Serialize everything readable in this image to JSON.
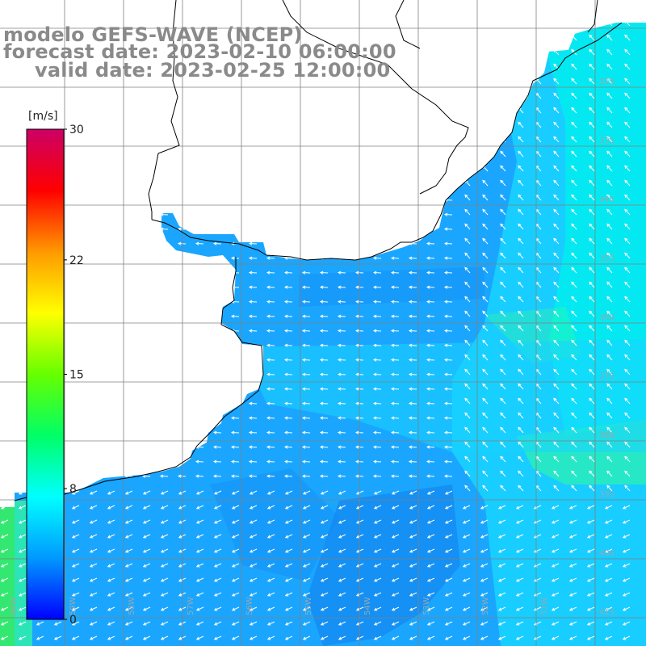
{
  "title": {
    "line1": "modelo GEFS-WAVE (NCEP)",
    "line2": "forecast date: 2023-02-10 06:00:00",
    "line3": "valid date: 2023-02-25 12:00:00"
  },
  "colorbar": {
    "unit": "[m/s]",
    "ticks": [
      "30",
      "22",
      "15",
      "8",
      "0"
    ],
    "tick_values": [
      30,
      22,
      15,
      8,
      0
    ],
    "min": 0,
    "max": 30,
    "colors": [
      "#0000ff",
      "#0099ff",
      "#00ffff",
      "#00ff66",
      "#66ff00",
      "#ffff00",
      "#ff9900",
      "#ff0000",
      "#cc0066"
    ]
  },
  "map": {
    "land_color": "#ffffff",
    "grid_color": "#808080",
    "coast_color": "#000000",
    "arrow_color": "#ffffff",
    "lat_labels": [
      "32S",
      "33S",
      "34S",
      "35S",
      "36S",
      "37S",
      "38S",
      "39S",
      "40S",
      "41S"
    ],
    "lon_labels": [
      "60W",
      "59W",
      "58W",
      "57W",
      "56W",
      "55W",
      "54W",
      "53W",
      "52W",
      "51W"
    ],
    "field_colors": {
      "mid": "#1aa6ff",
      "light": "#19d4ff",
      "cyan": "#00f0ee",
      "green": "#33ff99",
      "deep": "#1488f0",
      "west_green": "#33e870"
    }
  }
}
